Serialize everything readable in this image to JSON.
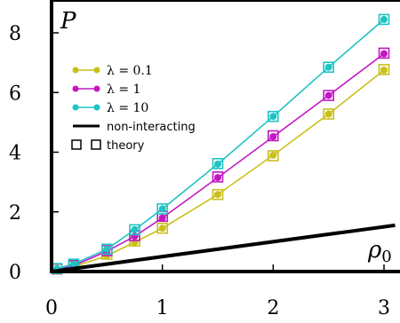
{
  "chart_data": {
    "type": "line",
    "ylabel": "P",
    "xlabel": "ρ0",
    "xlim": [
      0,
      3.1
    ],
    "ylim": [
      0,
      9
    ],
    "xticks": [
      0,
      1,
      2,
      3
    ],
    "yticks": [
      0,
      2,
      4,
      6,
      8
    ],
    "grid": false,
    "legend_position": "top-left",
    "series": [
      {
        "name": "λ = 0.1",
        "color": "#c8c01a",
        "marker": "circle",
        "x": [
          0.05,
          0.2,
          0.5,
          0.75,
          1.0,
          1.5,
          2.0,
          2.5,
          3.0
        ],
        "y": [
          0.07,
          0.16,
          0.53,
          0.98,
          1.45,
          2.58,
          3.9,
          5.28,
          6.75
        ],
        "theory": [
          0.08,
          0.18,
          0.58,
          1.02,
          1.45,
          2.58,
          3.88,
          5.28,
          6.77
        ]
      },
      {
        "name": "λ = 1",
        "color": "#c218c2",
        "marker": "circle",
        "x": [
          0.05,
          0.2,
          0.5,
          0.75,
          1.0,
          1.5,
          2.0,
          2.5,
          3.0
        ],
        "y": [
          0.08,
          0.2,
          0.68,
          1.18,
          1.8,
          3.15,
          4.52,
          5.9,
          7.3
        ],
        "theory": [
          0.09,
          0.2,
          0.7,
          1.2,
          1.85,
          3.17,
          4.55,
          5.9,
          7.32
        ]
      },
      {
        "name": "λ = 10",
        "color": "#1ec3c3",
        "marker": "circle",
        "x": [
          0.05,
          0.2,
          0.5,
          0.75,
          1.0,
          1.5,
          2.0,
          2.5,
          3.0
        ],
        "y": [
          0.1,
          0.25,
          0.75,
          1.4,
          2.1,
          3.6,
          5.2,
          6.85,
          8.45
        ],
        "theory": [
          0.1,
          0.25,
          0.75,
          1.4,
          2.1,
          3.62,
          5.2,
          6.85,
          8.45
        ]
      },
      {
        "name": "non-interacting",
        "color": "#000000",
        "x": [
          0,
          3.1
        ],
        "y": [
          0,
          1.55
        ]
      }
    ],
    "theory_label": "theory"
  }
}
